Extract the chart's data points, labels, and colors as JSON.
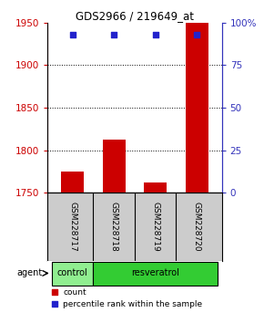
{
  "title": "GDS2966 / 219649_at",
  "samples": [
    "GSM228717",
    "GSM228718",
    "GSM228719",
    "GSM228720"
  ],
  "counts": [
    1775,
    1812,
    1762,
    1950
  ],
  "percentiles": [
    93,
    93,
    93,
    93
  ],
  "ylim_left": [
    1750,
    1950
  ],
  "ylim_right": [
    0,
    100
  ],
  "yticks_left": [
    1750,
    1800,
    1850,
    1900,
    1950
  ],
  "yticks_right": [
    0,
    25,
    50,
    75,
    100
  ],
  "ytick_labels_right": [
    "0",
    "25",
    "50",
    "75",
    "100%"
  ],
  "bar_color": "#cc0000",
  "dot_color": "#2222cc",
  "groups": [
    {
      "label": "control",
      "indices": [
        0
      ],
      "color": "#90ee90"
    },
    {
      "label": "resveratrol",
      "indices": [
        1,
        2,
        3
      ],
      "color": "#33cc33"
    }
  ],
  "group_label": "agent",
  "bar_width": 0.55,
  "bg_color": "#ffffff",
  "plot_bg": "#ffffff",
  "axis_left_color": "#cc0000",
  "axis_right_color": "#3333bb",
  "sample_box_color": "#cccccc",
  "legend_count_color": "#cc0000",
  "legend_pct_color": "#2222cc"
}
